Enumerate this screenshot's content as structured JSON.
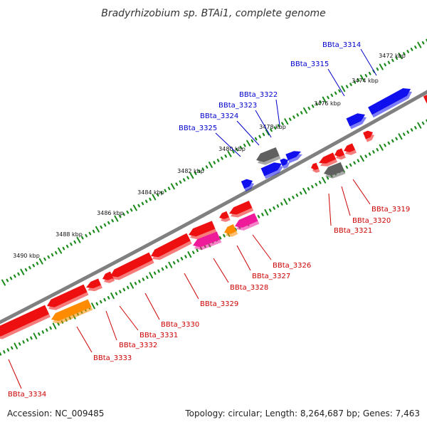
{
  "title": "Bradyrhizobium sp. BTAi1, complete genome",
  "footer": {
    "accession": "Accession: NC_009485",
    "summary": "Topology: circular; Length: 8,264,687 bp; Genes: 7,463"
  },
  "colors": {
    "backbone": "#808080",
    "tick": "#1a8a1a",
    "label_forward": "#0000cc",
    "label_reverse": "#cc0000",
    "gene_blue": "#1010ee",
    "gene_red": "#ee1010",
    "gene_gray": "#606060",
    "gene_orange": "#ff8c00",
    "gene_pink": "#ee1a9a"
  },
  "scale_labels": [
    "3472 kbp",
    "3474 kbp",
    "3476 kbp",
    "3478 kbp",
    "3480 kbp",
    "3482 kbp",
    "3484 kbp",
    "3486 kbp",
    "3488 kbp",
    "3490 kbp"
  ],
  "forward_gene_labels": [
    "BBta_3314",
    "BBta_3315",
    "BBta_3322",
    "BBta_3323",
    "BBta_3324",
    "BBta_3325"
  ],
  "reverse_gene_labels": [
    "BBta_3319",
    "BBta_3320",
    "BBta_3321",
    "BBta_3326",
    "BBta_3327",
    "BBta_3328",
    "BBta_3329",
    "BBta_3330",
    "BBta_3331",
    "BBta_3332",
    "BBta_3333",
    "BBta_3334"
  ]
}
